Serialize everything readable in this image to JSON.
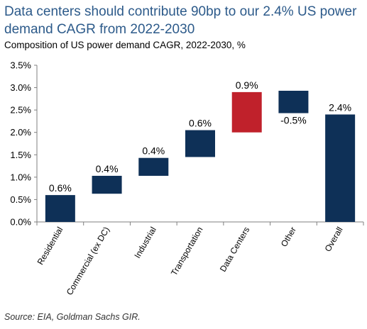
{
  "title": "Data centers should contribute 90bp to our 2.4% US power demand CAGR from 2022-2030",
  "subtitle": "Composition of US power demand CAGR, 2022-2030, %",
  "source": "Source: EIA, Goldman Sachs GIR.",
  "colors": {
    "title": "#2c5a8a",
    "bar_default": "#0e3057",
    "bar_highlight": "#c0212b",
    "axis": "#7f7f7f"
  },
  "chart_data": {
    "type": "bar",
    "subtype": "waterfall",
    "categories": [
      "Residential",
      "Commercial (ex DC)",
      "Industrial",
      "Transportation",
      "Data Centers",
      "Other",
      "Overall"
    ],
    "values": [
      0.6,
      0.4,
      0.4,
      0.6,
      0.9,
      -0.5,
      2.4
    ],
    "bases": [
      0.0,
      0.63,
      1.03,
      1.45,
      2.0,
      2.93,
      0.0
    ],
    "data_labels": [
      "0.6%",
      "0.4%",
      "0.4%",
      "0.6%",
      "0.9%",
      "-0.5%",
      "2.4%"
    ],
    "highlight_category": "Data Centers",
    "ylim": [
      0,
      3.5
    ],
    "yticks": [
      0,
      0.5,
      1.0,
      1.5,
      2.0,
      2.5,
      3.0,
      3.5
    ],
    "ytick_labels": [
      "0.0%",
      "0.5%",
      "1.0%",
      "1.5%",
      "2.0%",
      "2.5%",
      "3.0%",
      "3.5%"
    ],
    "grid": false,
    "legend": "none",
    "xlabel": "",
    "ylabel": ""
  }
}
